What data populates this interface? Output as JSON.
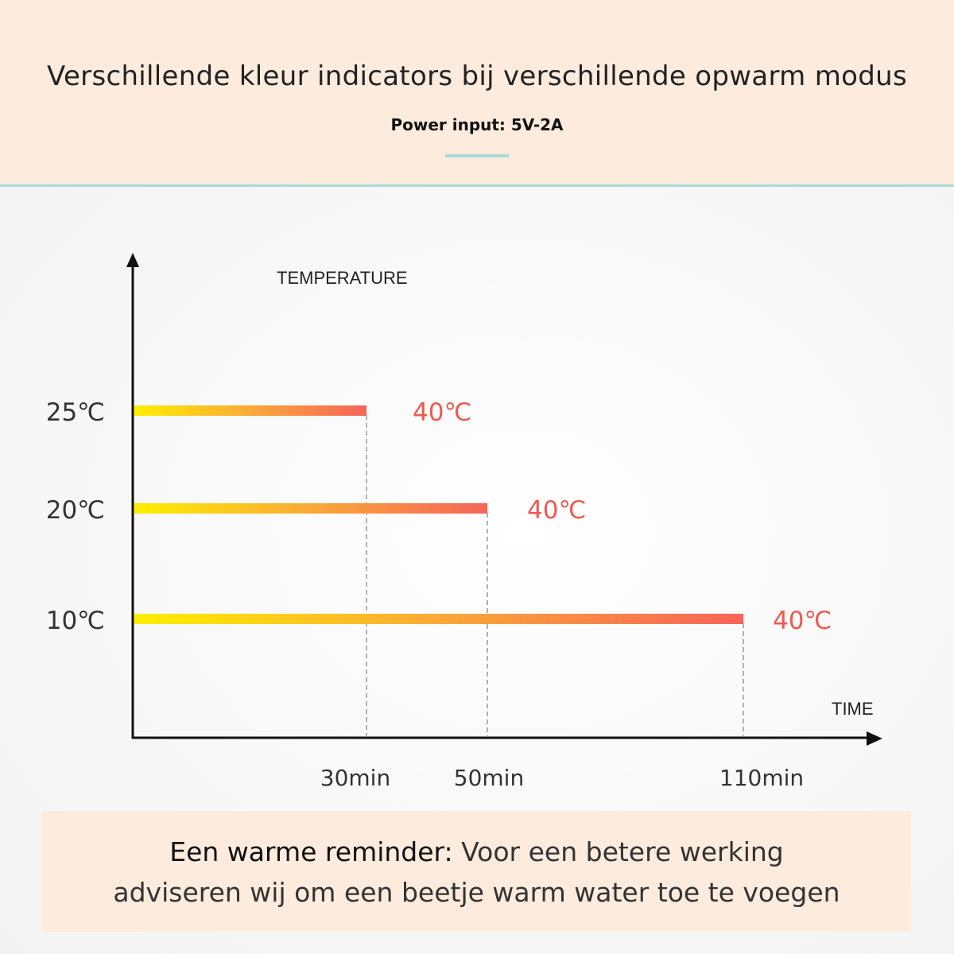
{
  "header": {
    "title": "Verschillende kleur indicators bij verschillende opwarm modus",
    "subtitle": "Power input: 5V-2A"
  },
  "chart_data": {
    "type": "bar",
    "orientation": "horizontal",
    "ylabel": "TEMPERATURE",
    "xlabel": "TIME",
    "categories": [
      "25℃",
      "20℃",
      "10℃"
    ],
    "values": [
      30,
      50,
      110
    ],
    "x_tick_labels": [
      "30min",
      "50min",
      "110min"
    ],
    "end_labels": [
      "40℃",
      "40℃",
      "40℃"
    ],
    "grid": false,
    "colors": {
      "gradient_start": "#ffee00",
      "gradient_mid": "#f9a937",
      "gradient_end": "#f6645a",
      "end_label": "#ef5a50",
      "axis": "#111111"
    }
  },
  "note": {
    "bold": "Een warme reminder:",
    "text": " Voor een betere werking",
    "line2": "adviseren wij om een beetje warm water toe te voegen"
  }
}
